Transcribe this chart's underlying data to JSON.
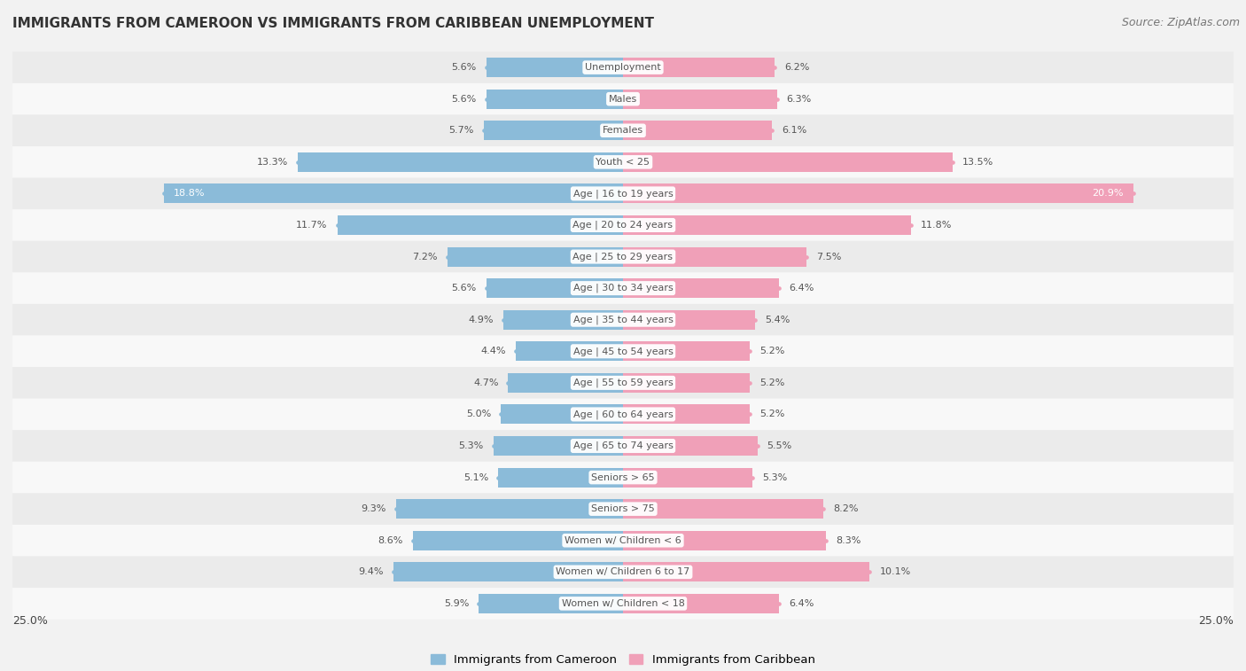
{
  "title": "IMMIGRANTS FROM CAMEROON VS IMMIGRANTS FROM CARIBBEAN UNEMPLOYMENT",
  "source": "Source: ZipAtlas.com",
  "categories": [
    "Unemployment",
    "Males",
    "Females",
    "Youth < 25",
    "Age | 16 to 19 years",
    "Age | 20 to 24 years",
    "Age | 25 to 29 years",
    "Age | 30 to 34 years",
    "Age | 35 to 44 years",
    "Age | 45 to 54 years",
    "Age | 55 to 59 years",
    "Age | 60 to 64 years",
    "Age | 65 to 74 years",
    "Seniors > 65",
    "Seniors > 75",
    "Women w/ Children < 6",
    "Women w/ Children 6 to 17",
    "Women w/ Children < 18"
  ],
  "cameroon_values": [
    5.6,
    5.6,
    5.7,
    13.3,
    18.8,
    11.7,
    7.2,
    5.6,
    4.9,
    4.4,
    4.7,
    5.0,
    5.3,
    5.1,
    9.3,
    8.6,
    9.4,
    5.9
  ],
  "caribbean_values": [
    6.2,
    6.3,
    6.1,
    13.5,
    20.9,
    11.8,
    7.5,
    6.4,
    5.4,
    5.2,
    5.2,
    5.2,
    5.5,
    5.3,
    8.2,
    8.3,
    10.1,
    6.4
  ],
  "cameroon_color": "#8bbbd9",
  "caribbean_color": "#f0a0b8",
  "x_max": 25.0,
  "background_color": "#f2f2f2",
  "row_color_odd": "#ebebeb",
  "row_color_even": "#f8f8f8",
  "label_left": "Immigrants from Cameroon",
  "label_right": "Immigrants from Caribbean",
  "legend_cameroon_color": "#8bbbd9",
  "legend_caribbean_color": "#f0a0b8",
  "title_fontsize": 11,
  "source_fontsize": 9,
  "bar_label_fontsize": 8,
  "category_fontsize": 8,
  "value_fontsize": 8
}
